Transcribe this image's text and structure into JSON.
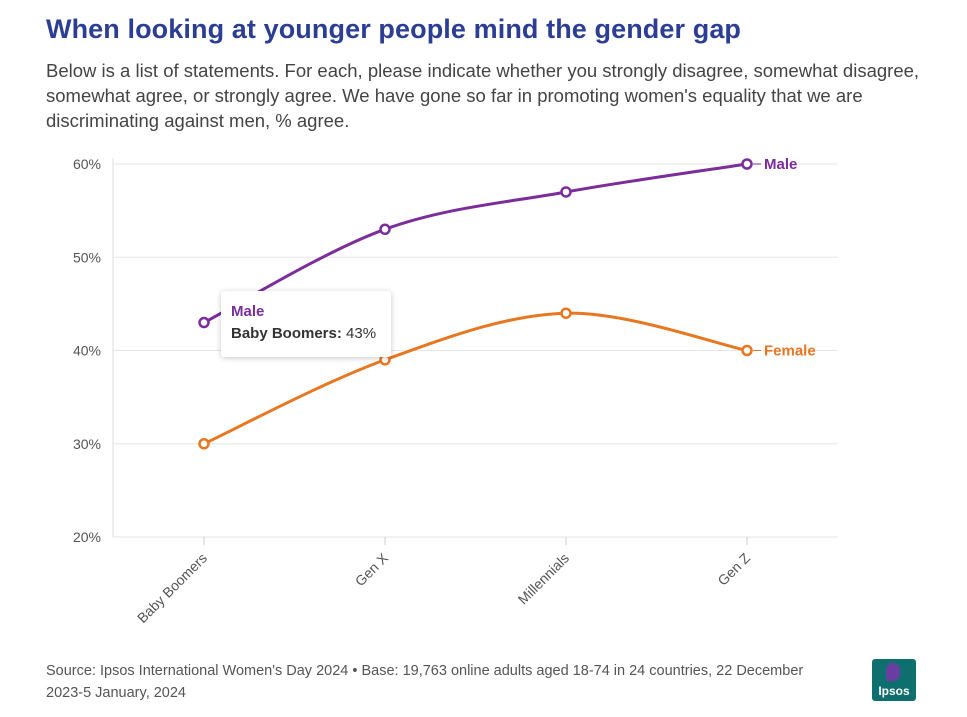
{
  "header": {
    "title": "When looking at younger people mind the gender gap",
    "subtitle": "Below is a list of statements. For each, please indicate whether you strongly disagree, somewhat disagree, somewhat agree, or strongly agree. We have gone so far in promoting women's equality that we are discriminating against men, % agree."
  },
  "chart_data": {
    "type": "line",
    "categories": [
      "Baby Boomers",
      "Gen X",
      "Millennials",
      "Gen Z"
    ],
    "series": [
      {
        "name": "Male",
        "values": [
          43,
          53,
          57,
          60
        ],
        "color": "#7b2d9a"
      },
      {
        "name": "Female",
        "values": [
          30,
          39,
          44,
          40
        ],
        "color": "#e87722"
      }
    ],
    "ylim": [
      20,
      60
    ],
    "yticks": [
      "20%",
      "30%",
      "40%",
      "50%",
      "60%"
    ],
    "ytick_values": [
      20,
      30,
      40,
      50,
      60
    ],
    "grid": true,
    "legend": "end-of-line labels"
  },
  "tooltip": {
    "series": "Male",
    "category": "Baby Boomers:",
    "value": "43%"
  },
  "footer": {
    "source": "Source: Ipsos International Women's Day 2024 • Base: 19,763 online adults aged 18-74 in 24 countries, 22 December 2023-5 January, 2024",
    "logo_text": "Ipsos"
  }
}
